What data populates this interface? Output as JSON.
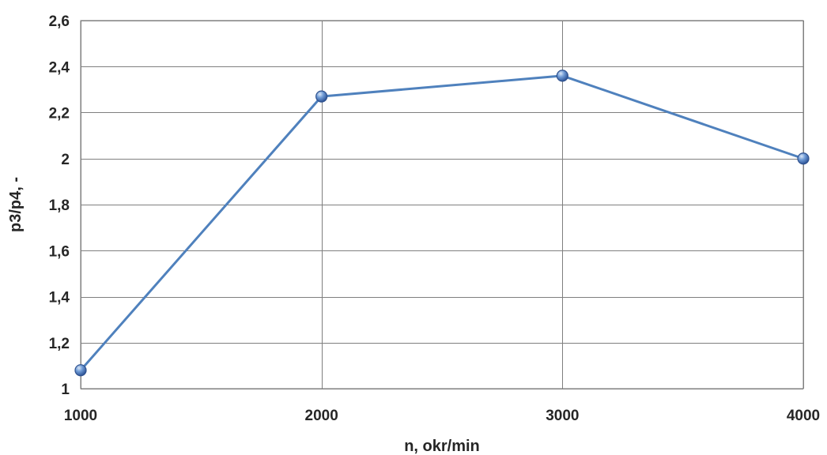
{
  "chart_data": {
    "type": "line",
    "title": "",
    "xlabel": "n, okr/min",
    "ylabel": "p3/p4, -",
    "x": [
      1000,
      2000,
      3000,
      4000
    ],
    "x_ticks": [
      "1000",
      "2000",
      "3000",
      "4000"
    ],
    "xlim": [
      1000,
      4000
    ],
    "ylim": [
      1,
      2.6
    ],
    "y_ticks": [
      1,
      1.2,
      1.4,
      1.6,
      1.8,
      2,
      2.2,
      2.4,
      2.6
    ],
    "y_tick_labels": [
      "1",
      "1,2",
      "1,4",
      "1,6",
      "1,8",
      "2",
      "2,2",
      "2,4",
      "2,6"
    ],
    "grid": "on",
    "legend": "none",
    "series": [
      {
        "values": [
          1.08,
          2.27,
          2.36,
          2.0
        ],
        "color": "#4f81bd",
        "marker": "circle"
      }
    ]
  }
}
